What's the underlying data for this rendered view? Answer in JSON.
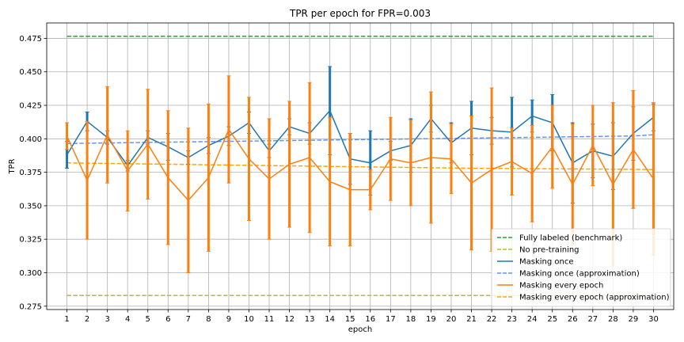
{
  "chart_data": {
    "type": "line",
    "title": "TPR per epoch for FPR=0.003",
    "xlabel": "epoch",
    "ylabel": "TPR",
    "x": [
      1,
      2,
      3,
      4,
      5,
      6,
      7,
      8,
      9,
      10,
      11,
      12,
      13,
      14,
      15,
      16,
      17,
      18,
      19,
      20,
      21,
      22,
      23,
      24,
      25,
      26,
      27,
      28,
      29,
      30
    ],
    "x_range": [
      0,
      31
    ],
    "ylim": [
      0.2725,
      0.4865
    ],
    "yticks": [
      0.275,
      0.3,
      0.325,
      0.35,
      0.375,
      0.4,
      0.425,
      0.45,
      0.475
    ],
    "ytick_labels": [
      "0.275",
      "0.300",
      "0.325",
      "0.350",
      "0.375",
      "0.400",
      "0.425",
      "0.450",
      "0.475"
    ],
    "grid": true,
    "legend_position": "lower-right",
    "series": [
      {
        "name": "Fully labeled (benchmark)",
        "style": "dashed",
        "color": "#2ca02c",
        "values": [
          0.4765,
          0.4765,
          0.4765,
          0.4765,
          0.4765,
          0.4765,
          0.4765,
          0.4765,
          0.4765,
          0.4765,
          0.4765,
          0.4765,
          0.4765,
          0.4765,
          0.4765,
          0.4765,
          0.4765,
          0.4765,
          0.4765,
          0.4765,
          0.4765,
          0.4765,
          0.4765,
          0.4765,
          0.4765,
          0.4765,
          0.4765,
          0.4765,
          0.4765,
          0.4765
        ]
      },
      {
        "name": "No pre-training",
        "style": "dashed",
        "color": "#bcbd22",
        "values": [
          0.283,
          0.283,
          0.283,
          0.283,
          0.283,
          0.283,
          0.283,
          0.283,
          0.283,
          0.283,
          0.283,
          0.283,
          0.283,
          0.283,
          0.283,
          0.283,
          0.283,
          0.283,
          0.283,
          0.283,
          0.283,
          0.283,
          0.283,
          0.283,
          0.283,
          0.283,
          0.283,
          0.283,
          0.283,
          0.283
        ]
      },
      {
        "name": "Masking once",
        "style": "solid",
        "color": "#1f77b4",
        "values": [
          0.388,
          0.413,
          0.401,
          0.38,
          0.401,
          0.394,
          0.386,
          0.395,
          0.402,
          0.412,
          0.391,
          0.409,
          0.404,
          0.421,
          0.385,
          0.382,
          0.391,
          0.395,
          0.415,
          0.397,
          0.408,
          0.406,
          0.405,
          0.417,
          0.412,
          0.382,
          0.391,
          0.387,
          0.404,
          0.416
        ],
        "err": [
          0.01,
          0.007,
          0.005,
          0.004,
          0.005,
          0.01,
          0.005,
          0.006,
          0.007,
          0.008,
          0.005,
          0.006,
          0.008,
          0.033,
          0.019,
          0.024,
          0.007,
          0.02,
          0.01,
          0.015,
          0.02,
          0.01,
          0.026,
          0.012,
          0.021,
          0.03,
          0.02,
          0.025,
          0.02,
          0.01
        ]
      },
      {
        "name": "Masking once (approximation)",
        "style": "dashed",
        "color": "#6495ed",
        "values": [
          0.3965,
          0.3967,
          0.3969,
          0.3971,
          0.3973,
          0.3975,
          0.3977,
          0.3979,
          0.3981,
          0.3983,
          0.3985,
          0.3987,
          0.3989,
          0.3991,
          0.3993,
          0.3995,
          0.3997,
          0.3999,
          0.4001,
          0.4003,
          0.4005,
          0.4007,
          0.4009,
          0.4011,
          0.4013,
          0.4015,
          0.4017,
          0.4019,
          0.4021,
          0.403
        ]
      },
      {
        "name": "Masking every epoch",
        "style": "solid",
        "color": "#ff7f0e",
        "values": [
          0.402,
          0.369,
          0.403,
          0.376,
          0.396,
          0.371,
          0.354,
          0.371,
          0.407,
          0.385,
          0.37,
          0.381,
          0.386,
          0.368,
          0.362,
          0.362,
          0.385,
          0.382,
          0.386,
          0.385,
          0.367,
          0.377,
          0.383,
          0.374,
          0.394,
          0.366,
          0.395,
          0.366,
          0.392,
          0.37
        ],
        "err": [
          0.01,
          0.044,
          0.036,
          0.03,
          0.041,
          0.05,
          0.054,
          0.055,
          0.04,
          0.046,
          0.045,
          0.047,
          0.056,
          0.048,
          0.042,
          0.015,
          0.031,
          0.032,
          0.049,
          0.026,
          0.05,
          0.061,
          0.025,
          0.036,
          0.031,
          0.045,
          0.03,
          0.061,
          0.044,
          0.057
        ]
      },
      {
        "name": "Masking every epoch (approximation)",
        "style": "dashed",
        "color": "#ffa500",
        "values": [
          0.382,
          0.3818,
          0.3816,
          0.3814,
          0.3812,
          0.381,
          0.3808,
          0.3806,
          0.3804,
          0.3802,
          0.38,
          0.3798,
          0.3796,
          0.3794,
          0.3792,
          0.379,
          0.3788,
          0.3786,
          0.3784,
          0.3782,
          0.378,
          0.3779,
          0.3778,
          0.3777,
          0.3776,
          0.3775,
          0.3774,
          0.3773,
          0.3772,
          0.377
        ]
      }
    ]
  }
}
